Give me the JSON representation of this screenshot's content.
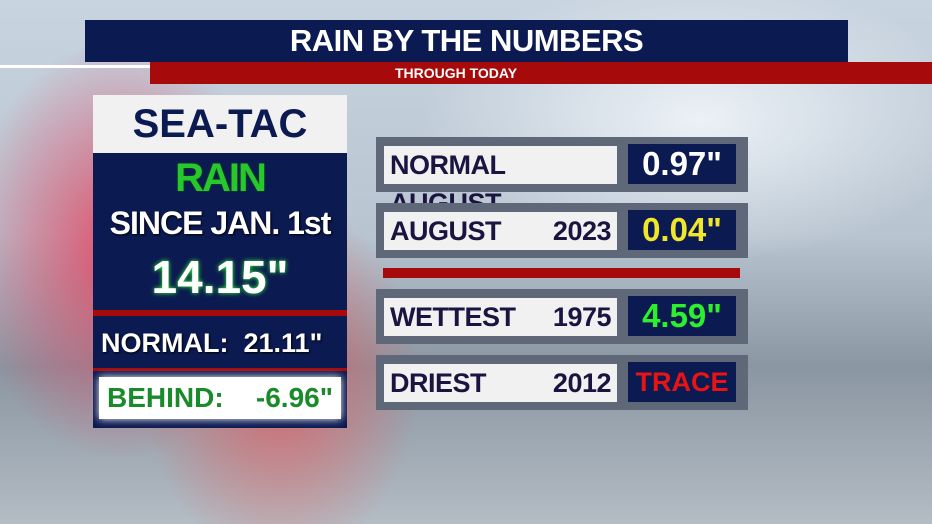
{
  "header": {
    "title": "RAIN BY THE NUMBERS",
    "subtitle": "THROUGH TODAY"
  },
  "panel": {
    "location": "SEA-TAC",
    "rain_label": "RAIN",
    "since_label": "SINCE JAN. 1st",
    "total": "14.15\"",
    "normal_label": "NORMAL:",
    "normal_value": "21.11\"",
    "behind_label": "BEHIND:",
    "behind_value": "-6.96\""
  },
  "rows": [
    {
      "label": "NORMAL AUGUST",
      "year": "",
      "value": "0.97\"",
      "color": "#ffffff"
    },
    {
      "label": "AUGUST",
      "year": "2023",
      "value": "0.04\"",
      "color": "#f0e62a"
    },
    {
      "label": "WETTEST",
      "year": "1975",
      "value": "4.59\"",
      "color": "#2cf02c"
    },
    {
      "label": "DRIEST",
      "year": "2012",
      "value": "TRACE",
      "color": "#e81414"
    }
  ],
  "colors": {
    "navy": "#0c1a52",
    "red": "#a60a0a",
    "green": "#28c82c"
  }
}
